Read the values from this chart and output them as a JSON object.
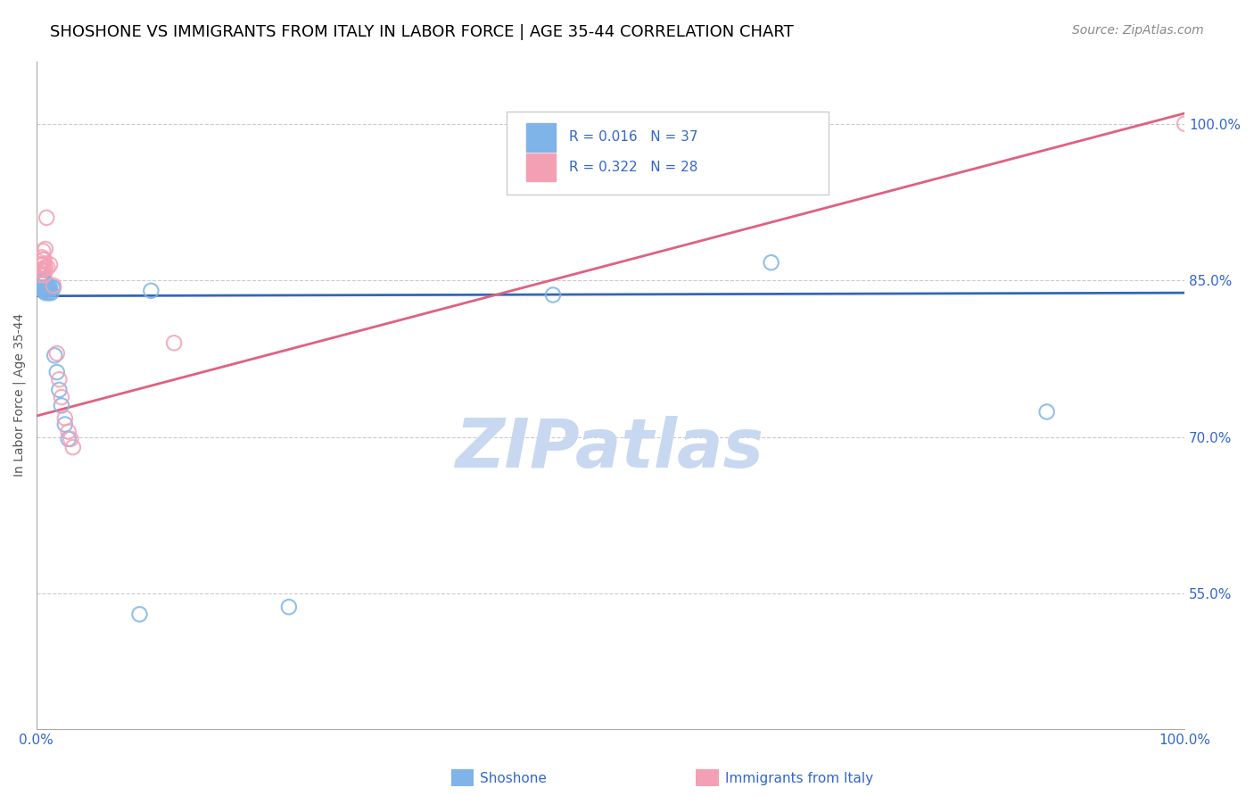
{
  "title": "SHOSHONE VS IMMIGRANTS FROM ITALY IN LABOR FORCE | AGE 35-44 CORRELATION CHART",
  "source": "Source: ZipAtlas.com",
  "ylabel": "In Labor Force | Age 35-44",
  "y_tick_labels": [
    "100.0%",
    "85.0%",
    "70.0%",
    "55.0%"
  ],
  "y_tick_values": [
    1.0,
    0.85,
    0.7,
    0.55
  ],
  "xlim": [
    0.0,
    1.0
  ],
  "ylim": [
    0.42,
    1.06
  ],
  "watermark": "ZIPatlas",
  "shoshone_color": "#7EB4E8",
  "italy_color": "#F4A0B4",
  "shoshone_line_color": "#3366BB",
  "italy_line_color": "#E06080",
  "grid_color": "#cccccc",
  "bg_color": "#ffffff",
  "title_fontsize": 13,
  "source_fontsize": 10,
  "watermark_color": "#C8D8F0",
  "watermark_fontsize": 55,
  "shoshone_x": [
    0.003,
    0.003,
    0.004,
    0.005,
    0.005,
    0.005,
    0.006,
    0.006,
    0.006,
    0.007,
    0.007,
    0.007,
    0.007,
    0.007,
    0.008,
    0.008,
    0.008,
    0.009,
    0.009,
    0.01,
    0.01,
    0.011,
    0.011,
    0.012,
    0.013,
    0.014,
    0.015,
    0.016,
    0.018,
    0.02,
    0.022,
    0.025,
    0.028,
    0.1,
    0.45,
    0.64,
    0.88,
    0.09,
    0.22
  ],
  "shoshone_y": [
    0.848,
    0.843,
    0.85,
    0.842,
    0.848,
    0.855,
    0.84,
    0.843,
    0.848,
    0.84,
    0.843,
    0.848,
    0.85,
    0.843,
    0.838,
    0.843,
    0.848,
    0.84,
    0.843,
    0.843,
    0.838,
    0.843,
    0.838,
    0.843,
    0.838,
    0.843,
    0.843,
    0.778,
    0.762,
    0.745,
    0.73,
    0.712,
    0.698,
    0.84,
    0.836,
    0.867,
    0.724,
    0.53,
    0.537
  ],
  "italy_x": [
    0.003,
    0.004,
    0.004,
    0.005,
    0.005,
    0.005,
    0.006,
    0.006,
    0.006,
    0.006,
    0.007,
    0.007,
    0.007,
    0.008,
    0.008,
    0.009,
    0.01,
    0.012,
    0.015,
    0.018,
    0.02,
    0.022,
    0.025,
    0.028,
    0.03,
    0.032,
    0.12,
    1.0
  ],
  "italy_y": [
    0.855,
    0.86,
    0.865,
    0.86,
    0.865,
    0.872,
    0.86,
    0.865,
    0.87,
    0.878,
    0.855,
    0.862,
    0.87,
    0.862,
    0.88,
    0.91,
    0.862,
    0.865,
    0.845,
    0.78,
    0.755,
    0.738,
    0.718,
    0.705,
    0.698,
    0.69,
    0.79,
    1.0
  ],
  "blue_line_x": [
    0.0,
    1.0
  ],
  "blue_line_y": [
    0.835,
    0.838
  ],
  "pink_line_x": [
    0.0,
    1.0
  ],
  "pink_line_y": [
    0.72,
    1.01
  ]
}
